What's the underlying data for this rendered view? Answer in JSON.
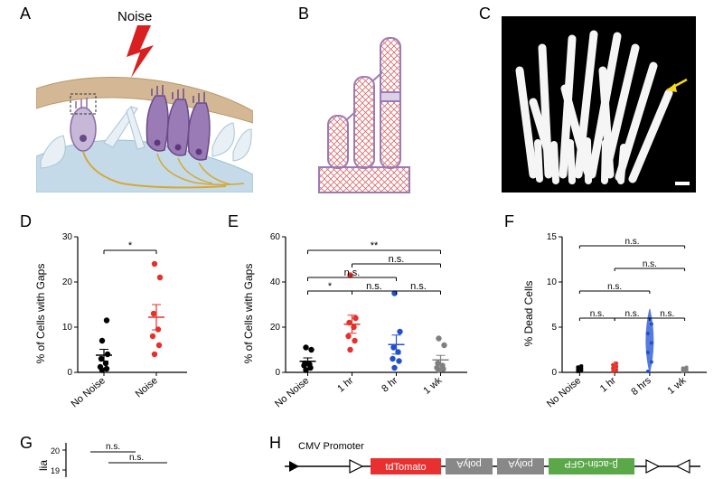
{
  "panels": {
    "A": {
      "label": "A",
      "noise": "Noise"
    },
    "B": {
      "label": "B"
    },
    "C": {
      "label": "C"
    },
    "D": {
      "label": "D"
    },
    "E": {
      "label": "E"
    },
    "F": {
      "label": "F"
    },
    "G": {
      "label": "G"
    },
    "H": {
      "label": "H",
      "promoter": "CMV Promoter"
    }
  },
  "colors": {
    "black": "#000000",
    "red": "#e8302a",
    "blue": "#2050d0",
    "grey": "#808080",
    "purple": "#9b7bb5",
    "tan": "#d4b896",
    "lightblue": "#c5dae8",
    "yellow": "#d4a838",
    "lightpurple": "#c8b8d8",
    "redbox": "#e83030",
    "greybox": "#888888",
    "greenbox": "#5aa848"
  },
  "chartD": {
    "type": "scatter",
    "ylabel": "% of Cells with Gaps",
    "ylim": [
      0,
      30
    ],
    "ytick_step": 10,
    "categories": [
      "No Noise",
      "Noise"
    ],
    "series": [
      {
        "x": 0,
        "color": "#000000",
        "values": [
          0.5,
          0.8,
          1.2,
          2,
          3,
          4,
          7,
          11.5
        ],
        "mean": 3.8,
        "sem": 1.3
      },
      {
        "x": 1,
        "color": "#e8302a",
        "values": [
          4,
          6,
          8,
          9.5,
          13,
          21,
          24
        ],
        "mean": 12.2,
        "sem": 2.8
      }
    ],
    "sig": [
      {
        "groups": [
          0,
          1
        ],
        "label": "*",
        "y": 27
      }
    ]
  },
  "chartE": {
    "type": "scatter",
    "ylabel": "% of Cells with Gaps",
    "ylim": [
      0,
      60
    ],
    "ytick_step": 20,
    "categories": [
      "No Noise",
      "1 hr",
      "8 hr",
      "1 wk"
    ],
    "series": [
      {
        "x": 0,
        "color": "#000000",
        "values": [
          1,
          2,
          3,
          3.5,
          4,
          10,
          11
        ],
        "mean": 4.9,
        "sem": 1.5
      },
      {
        "x": 1,
        "color": "#e8302a",
        "values": [
          10,
          14,
          16,
          20,
          22,
          24,
          43
        ],
        "mean": 21.3,
        "sem": 4
      },
      {
        "x": 2,
        "color": "#2050d0",
        "values": [
          2,
          5,
          6,
          9,
          11,
          18,
          35
        ],
        "mean": 12.3,
        "sem": 4.2
      },
      {
        "x": 3,
        "color": "#808080",
        "values": [
          1,
          1.5,
          2,
          3,
          4,
          12,
          15
        ],
        "mean": 5.5,
        "sem": 2
      }
    ],
    "sig": [
      {
        "groups": [
          0,
          1
        ],
        "label": "*",
        "y": 36
      },
      {
        "groups": [
          1,
          2
        ],
        "label": "n.s.",
        "y": 36
      },
      {
        "groups": [
          2,
          3
        ],
        "label": "n.s.",
        "y": 36
      },
      {
        "groups": [
          0,
          2
        ],
        "label": "n.s.",
        "y": 42
      },
      {
        "groups": [
          1,
          3
        ],
        "label": "n.s.",
        "y": 48
      },
      {
        "groups": [
          0,
          3
        ],
        "label": "**",
        "y": 54
      }
    ]
  },
  "chartF": {
    "type": "violin",
    "ylabel": "% Dead Cells",
    "ylim": [
      0,
      15
    ],
    "ytick_step": 5,
    "categories": [
      "No Noise",
      "1 hr",
      "8 hrs",
      "1 wk"
    ],
    "series_colors": [
      "#000000",
      "#e8302a",
      "#2050d0",
      "#808080"
    ],
    "sig": [
      {
        "groups": [
          0,
          1
        ],
        "label": "n.s.",
        "y": 6
      },
      {
        "groups": [
          1,
          2
        ],
        "label": "n.s.",
        "y": 6
      },
      {
        "groups": [
          2,
          3
        ],
        "label": "n.s.",
        "y": 6
      },
      {
        "groups": [
          0,
          2
        ],
        "label": "n.s.",
        "y": 9
      },
      {
        "groups": [
          1,
          3
        ],
        "label": "n.s.",
        "y": 11.5
      },
      {
        "groups": [
          0,
          3
        ],
        "label": "n.s.",
        "y": 14
      }
    ]
  },
  "chartG": {
    "ylabel_partial": "lia",
    "ytick_visible": [
      19,
      20
    ],
    "sig": [
      {
        "label": "n.s.",
        "y": 19.5
      },
      {
        "label": "n.s.",
        "y": 19.8
      }
    ]
  },
  "panelH": {
    "boxes": [
      "tdTomato",
      "polyA",
      "polyA",
      "β-actin-GFP"
    ]
  }
}
